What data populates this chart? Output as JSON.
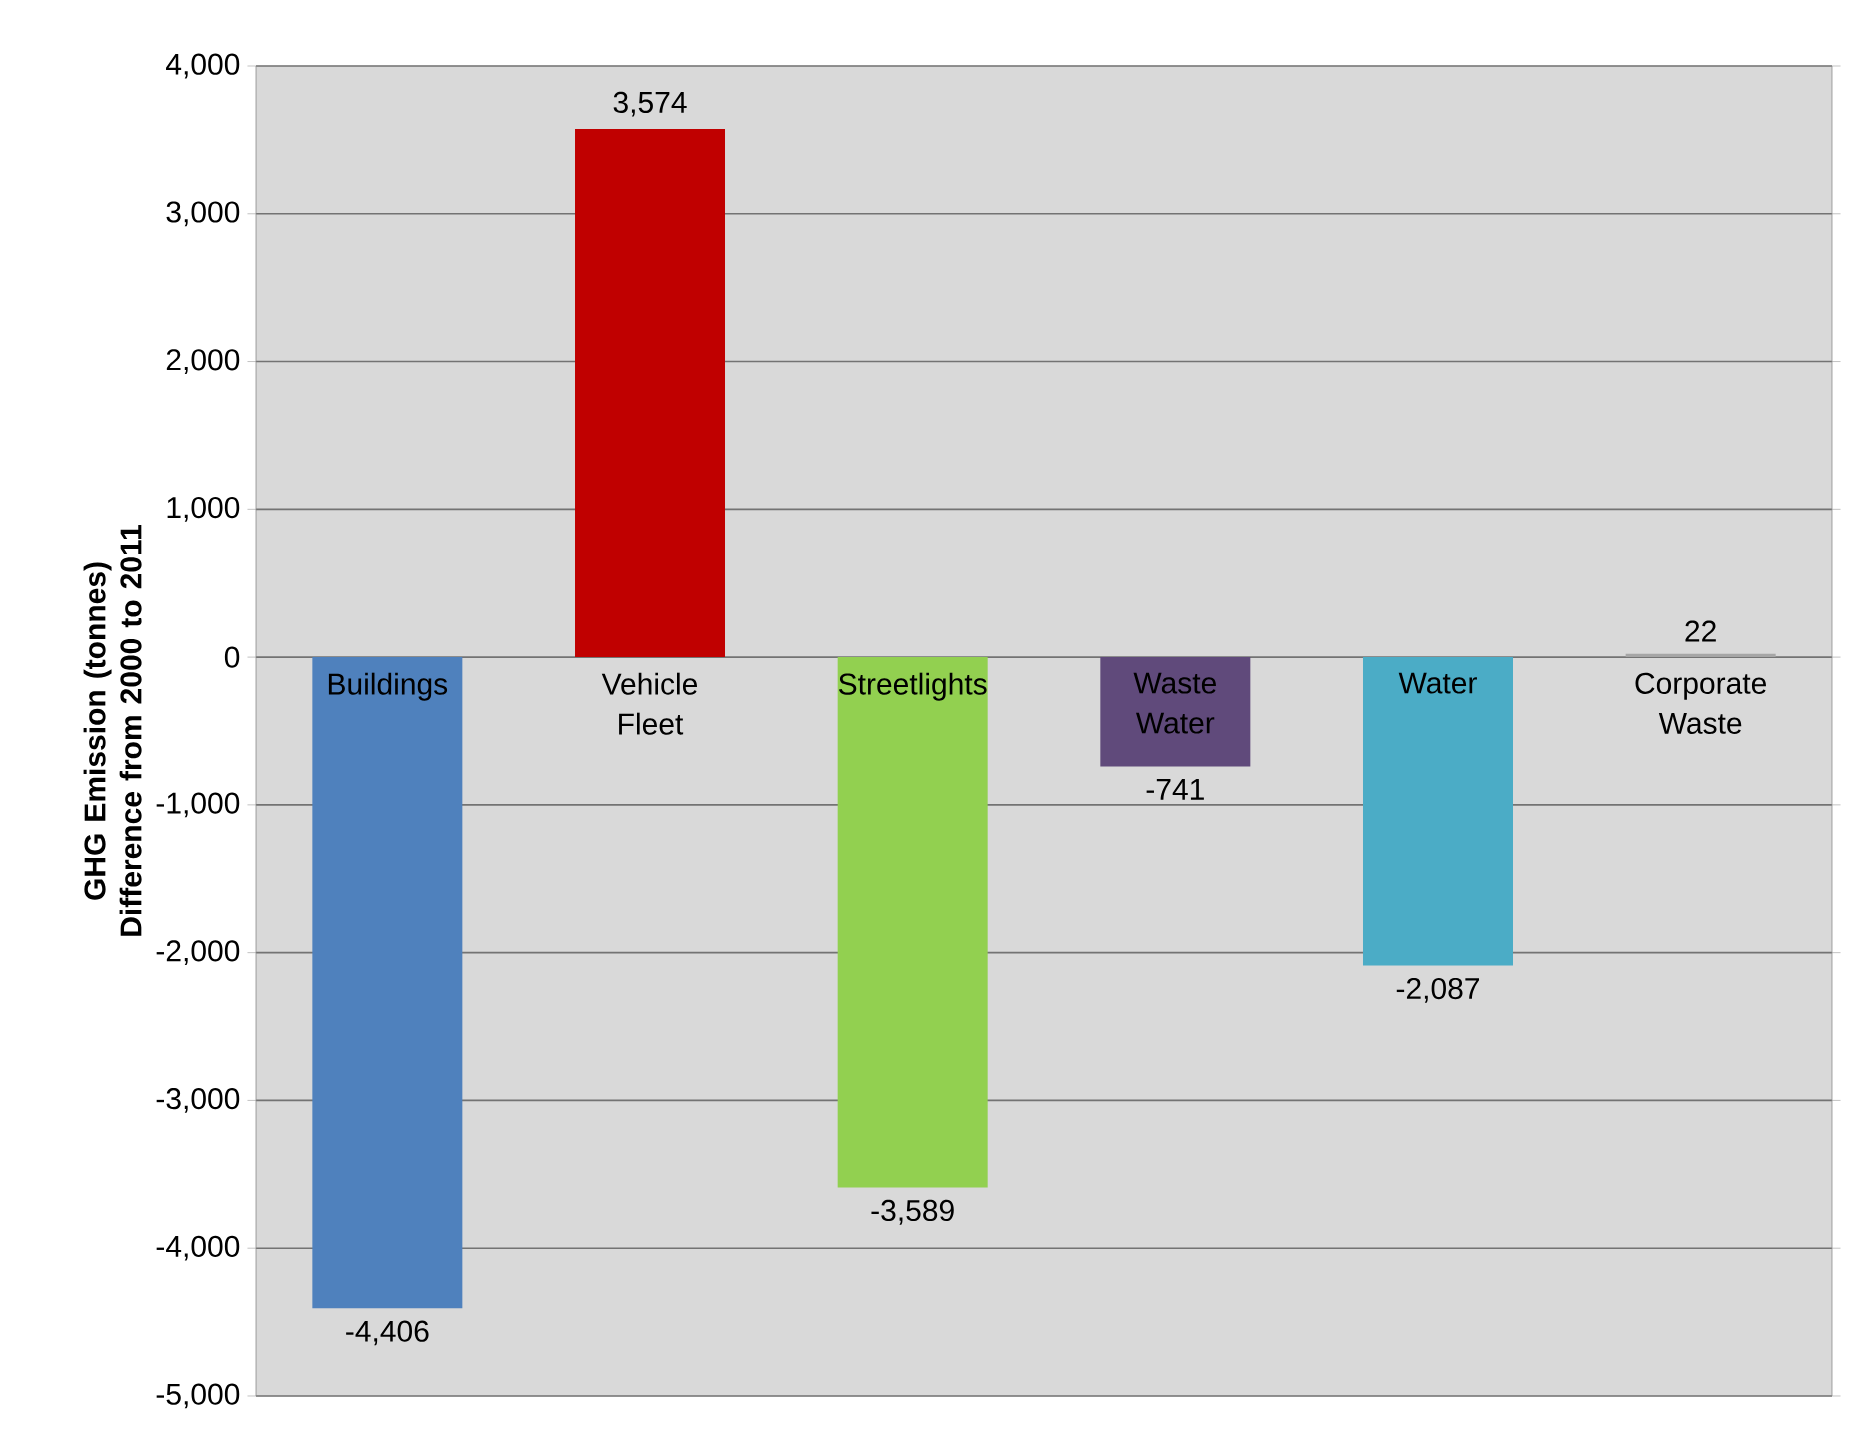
{
  "chart_data": {
    "type": "bar",
    "ylabel": "GHG Emission (tonnes) Difference from 2000 to 2011",
    "categories": [
      "Buildings",
      "Vehicle Fleet",
      "Streetlights",
      "Waste Water",
      "Water",
      "Corporate Waste"
    ],
    "values": [
      -4406,
      3574,
      -3589,
      -741,
      -2087,
      22
    ],
    "colors": [
      "#4f81bd",
      "#c00000",
      "#92d050",
      "#604a7b",
      "#4bacc6",
      "#a6a6a6"
    ],
    "value_labels": [
      "-4,406",
      "3,574",
      "-3,589",
      "-741",
      "-2,087",
      "22"
    ],
    "ylim": [
      -5000,
      4000
    ],
    "yticks": [
      {
        "value": -5000,
        "label": "-5,000"
      },
      {
        "value": -4000,
        "label": "-4,000"
      },
      {
        "value": -3000,
        "label": "-3,000"
      },
      {
        "value": -2000,
        "label": "-2,000"
      },
      {
        "value": -1000,
        "label": "-1,000"
      },
      0,
      {
        "value": 1000,
        "label": "1,000"
      },
      {
        "value": 2000,
        "label": "2,000"
      },
      {
        "value": 3000,
        "label": "3,000"
      },
      {
        "value": 4000,
        "label": "4,000"
      }
    ],
    "grid": "y"
  }
}
